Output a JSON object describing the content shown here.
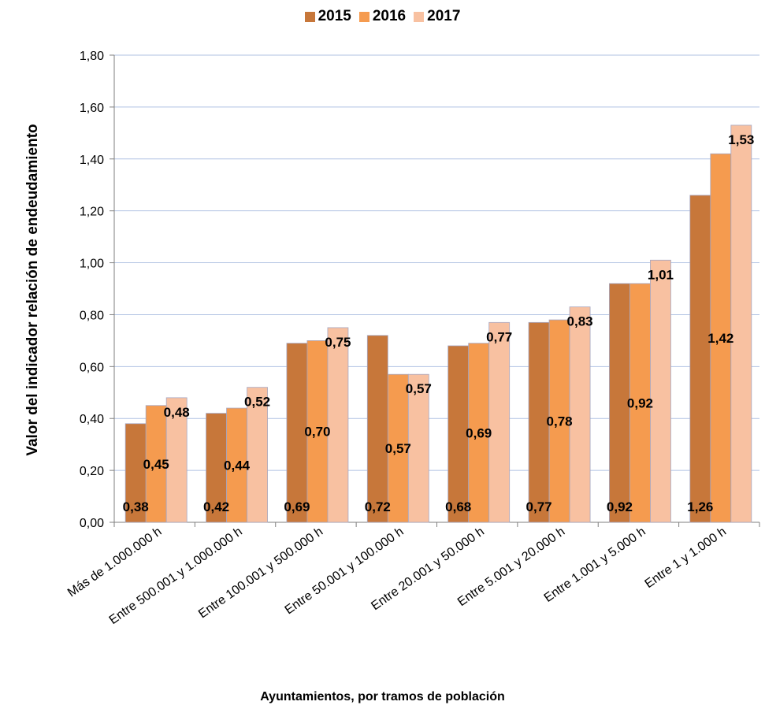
{
  "chart_data": {
    "type": "bar",
    "title": "",
    "xlabel": "Ayuntamientos, por tramos de población",
    "ylabel": "Valor del indicador relación de endeudamiento",
    "ylim": [
      0,
      1.8
    ],
    "yticks": [
      "0,00",
      "0,20",
      "0,40",
      "0,60",
      "0,80",
      "1,00",
      "1,20",
      "1,40",
      "1,60",
      "1,80"
    ],
    "grid": true,
    "legend_position": "top",
    "categories": [
      "Más de 1.000.000 h",
      "Entre 500.001 y 1.000.000 h",
      "Entre 100.001 y 500.000 h",
      "Entre 50.001 y 100.000 h",
      "Entre 20.001 y 50.000 h",
      "Entre 5.001 y 20.000 h",
      "Entre 1.001 y 5.000 h",
      "Entre 1 y 1.000 h"
    ],
    "series": [
      {
        "name": "2015",
        "color": "#C7773A",
        "values": [
          0.38,
          0.42,
          0.69,
          0.72,
          0.68,
          0.77,
          0.92,
          1.26
        ],
        "labels": [
          "0,38",
          "0,42",
          "0,69",
          "0,72",
          "0,68",
          "0,77",
          "0,92",
          "1,26"
        ]
      },
      {
        "name": "2016",
        "color": "#F59B4F",
        "values": [
          0.45,
          0.44,
          0.7,
          0.57,
          0.69,
          0.78,
          0.92,
          1.42
        ],
        "labels": [
          "0,45",
          "0,44",
          "0,70",
          "0,57",
          "0,69",
          "0,78",
          "0,92",
          "1,42"
        ]
      },
      {
        "name": "2017",
        "color": "#F8C1A1",
        "values": [
          0.48,
          0.52,
          0.75,
          0.57,
          0.77,
          0.83,
          1.01,
          1.53
        ],
        "labels": [
          "0,48",
          "0,52",
          "0,75",
          "0,57",
          "0,77",
          "0,83",
          "1,01",
          "1,53"
        ]
      }
    ]
  }
}
